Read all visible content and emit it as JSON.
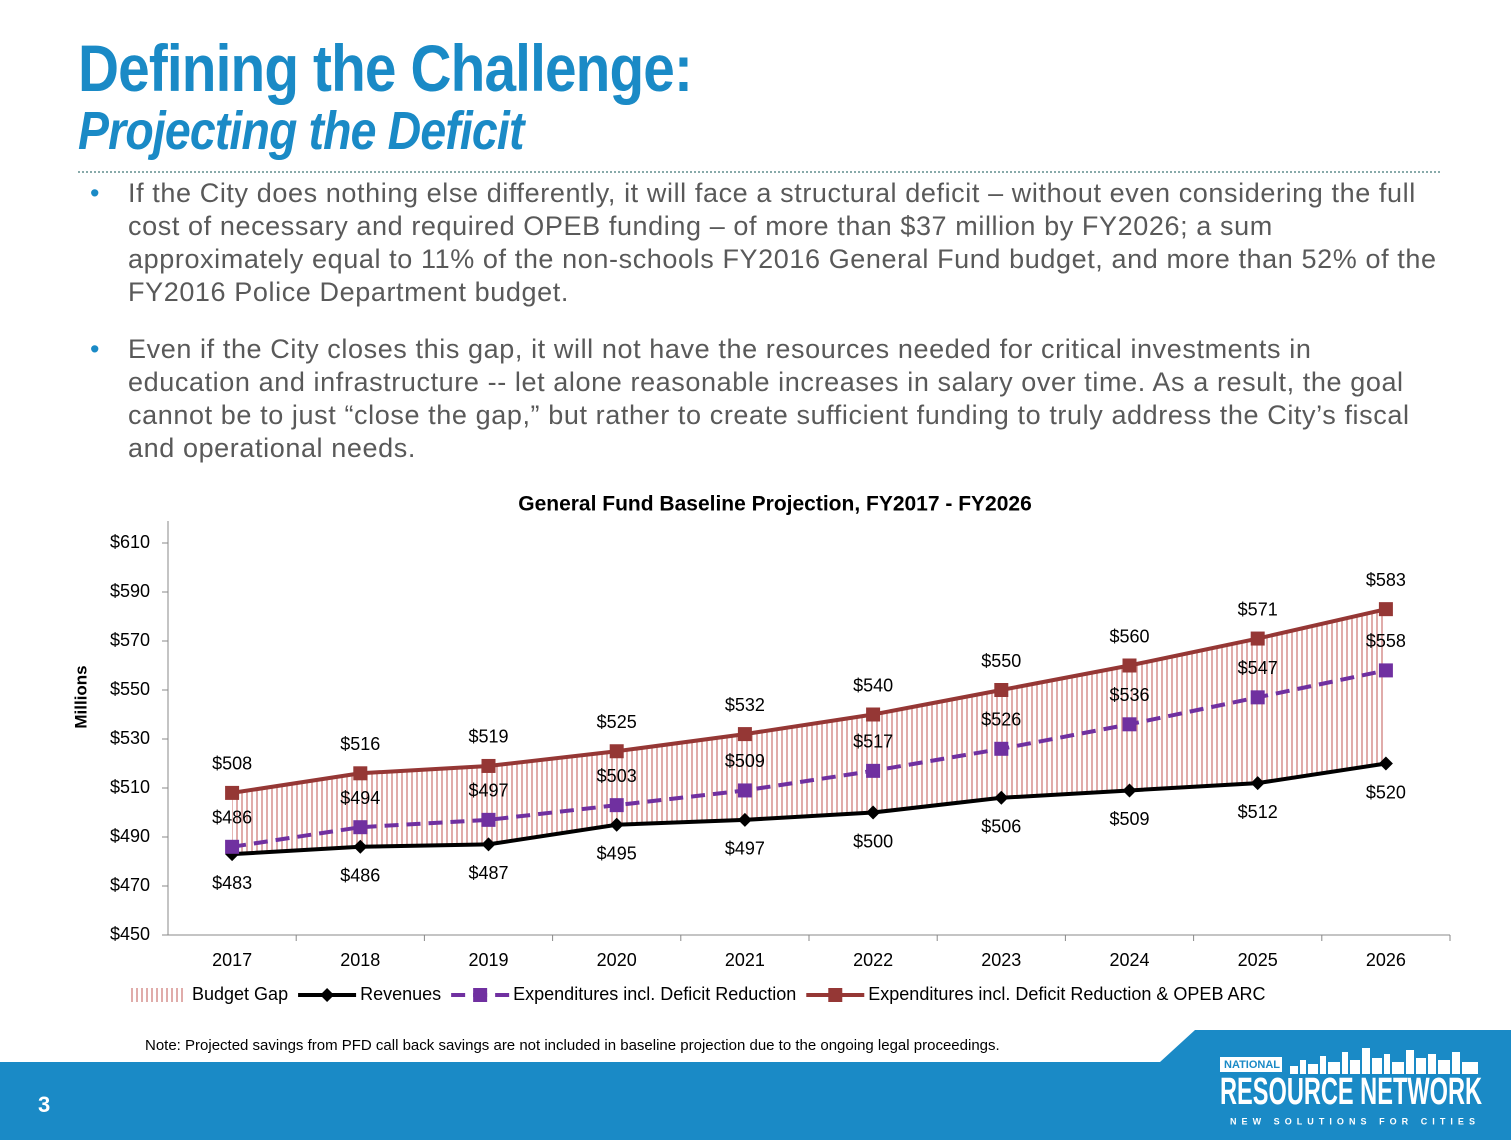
{
  "title": "Defining the Challenge:",
  "subtitle": "Projecting the Deficit",
  "bullets": [
    "If the City does nothing else differently, it will face a structural deficit – without even considering the full cost of necessary and required OPEB funding – of more than $37 million by FY2026; a sum approximately equal to 11% of the non-schools FY2016 General Fund budget, and more than 52% of the FY2016 Police Department budget.",
    "Even if the City closes this gap, it will not have the resources needed for critical investments in education and infrastructure -- let alone reasonable increases in salary over time.  As a result, the goal cannot be to just “close the gap,” but rather to create sufficient funding to truly address the City’s fiscal and operational needs."
  ],
  "chart_data": {
    "type": "line",
    "title": "General Fund Baseline Projection, FY2017 - FY2026",
    "y_label": "Millions",
    "categories": [
      "2017",
      "2018",
      "2019",
      "2020",
      "2021",
      "2022",
      "2023",
      "2024",
      "2025",
      "2026"
    ],
    "band": {
      "name": "Budget Gap",
      "color": "#d99694"
    },
    "series": [
      {
        "name": "Revenues",
        "color": "#000000",
        "marker": "diamond",
        "dash": false,
        "label_position": "below",
        "values": [
          483,
          486,
          487,
          495,
          497,
          500,
          506,
          509,
          512,
          520
        ],
        "value_labels": [
          "$483",
          "$486",
          "$487",
          "$495",
          "$497",
          "$500",
          "$506",
          "$509",
          "$512",
          "$520"
        ]
      },
      {
        "name": "Expenditures incl. Deficit Reduction",
        "color": "#7030a0",
        "marker": "square",
        "dash": true,
        "label_position": "above",
        "values": [
          486,
          494,
          497,
          503,
          509,
          517,
          526,
          536,
          547,
          558
        ],
        "value_labels": [
          "$486",
          "$494",
          "$497",
          "$503",
          "$509",
          "$517",
          "$526",
          "$536",
          "$547",
          "$558"
        ]
      },
      {
        "name": "Expenditures incl. Deficit Reduction & OPEB ARC",
        "color": "#953735",
        "marker": "square",
        "dash": false,
        "label_position": "above",
        "values": [
          508,
          516,
          519,
          525,
          532,
          540,
          550,
          560,
          571,
          583
        ],
        "value_labels": [
          "$508",
          "$516",
          "$519",
          "$525",
          "$532",
          "$540",
          "$550",
          "$560",
          "$571",
          "$583"
        ]
      }
    ],
    "ylim": [
      450,
      610
    ],
    "yticks": [
      {
        "value": 450,
        "label": "$450"
      },
      {
        "value": 470,
        "label": "$470"
      },
      {
        "value": 490,
        "label": "$490"
      },
      {
        "value": 510,
        "label": "$510"
      },
      {
        "value": 530,
        "label": "$530"
      },
      {
        "value": 550,
        "label": "$550"
      },
      {
        "value": 570,
        "label": "$570"
      },
      {
        "value": 590,
        "label": "$590"
      },
      {
        "value": 610,
        "label": "$610"
      }
    ],
    "grid": false
  },
  "note": "Note: Projected savings from PFD call back savings are not included in baseline projection due to the ongoing legal proceedings.",
  "page_number": "3",
  "logo": {
    "top": "NATIONAL",
    "main": "RESOURCE NETWORK",
    "tagline": "NEW SOLUTIONS FOR CITIES"
  }
}
